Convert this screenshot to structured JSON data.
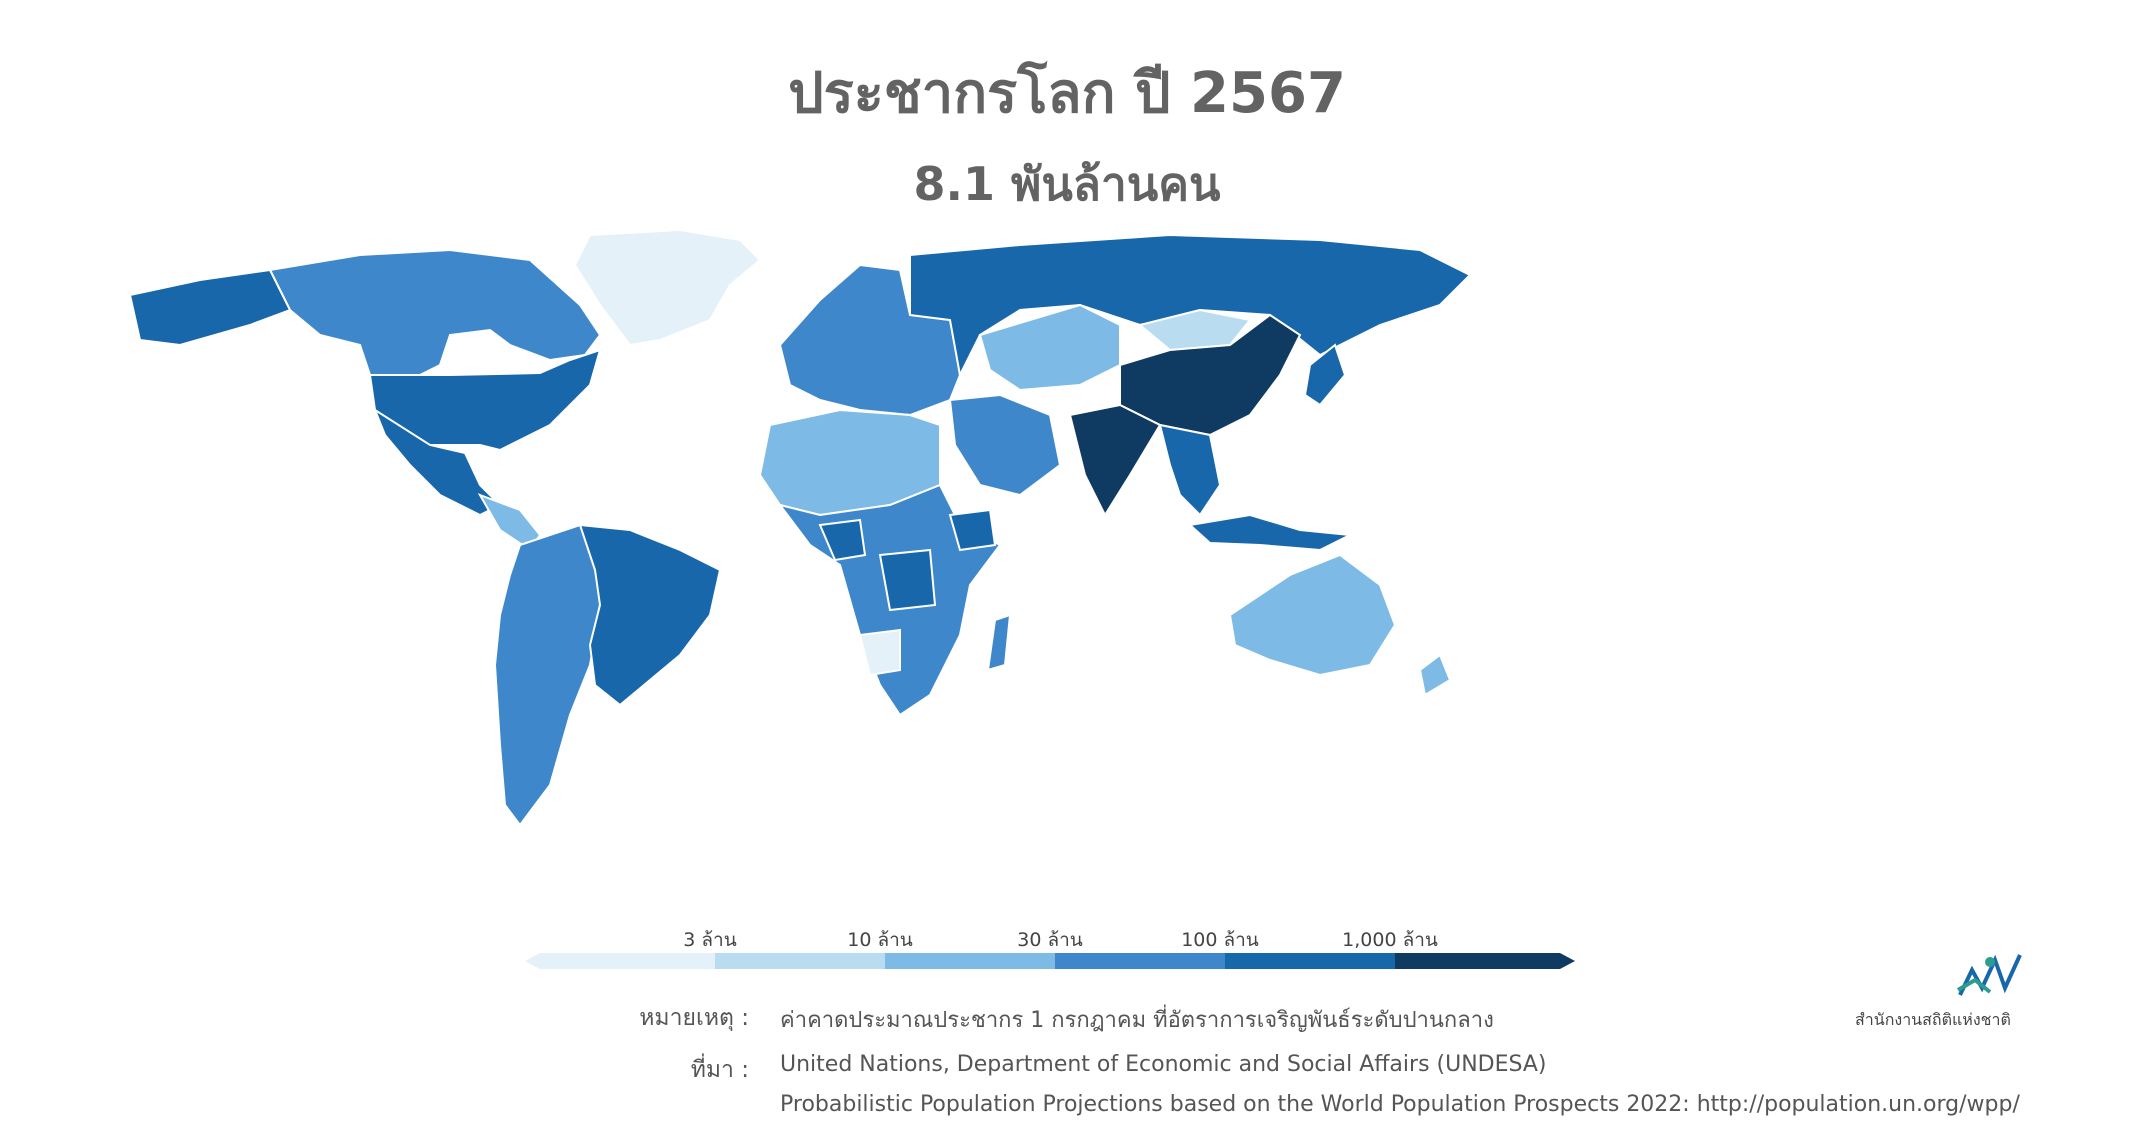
{
  "title": "ประชากรโลก ปี 2567",
  "subtitle": "8.1 พันล้านคน",
  "legend": {
    "ticks": [
      "3 ล้าน",
      "10 ล้าน",
      "30 ล้าน",
      "100 ล้าน",
      "1,000 ล้าน"
    ],
    "colors": [
      "#e4f1f9",
      "#b9dcf0",
      "#7dbae6",
      "#3f87cb",
      "#1967ab",
      "#0f3a62"
    ]
  },
  "notes": {
    "remark_label": "หมายเหตุ :",
    "remark_text": "ค่าคาดประมาณประชากร 1 กรกฎาคม ที่อัตราการเจริญพันธ์ระดับปานกลาง",
    "source_label": "ที่มา :",
    "source_line1": "United Nations, Department of Economic and Social Affairs (UNDESA)",
    "source_line2": "Probabilistic Population Projections based on the World Population Prospects 2022: http://population.un.org/wpp/"
  },
  "organization": "สำนักงานสถิติแห่งชาติ",
  "map_colors": {
    "greenland": "#e4f1f9",
    "canada": "#3f87cb",
    "alaska_usa": "#1967ab",
    "mexico": "#1967ab",
    "central_america": "#7dbae6",
    "brazil": "#1967ab",
    "south_america_other": "#3f87cb",
    "europe": "#3f87cb",
    "russia": "#1967ab",
    "north_africa": "#7dbae6",
    "africa": "#3f87cb",
    "nigeria_ethiopia_drc": "#1967ab",
    "middle_east": "#3f87cb",
    "central_asia": "#7dbae6",
    "mongolia": "#b9dcf0",
    "china_india": "#0f3a62",
    "southeast_asia": "#1967ab",
    "japan": "#1967ab",
    "australia": "#7dbae6",
    "new_zealand": "#7dbae6",
    "southern_africa_light": "#e4f1f9"
  }
}
